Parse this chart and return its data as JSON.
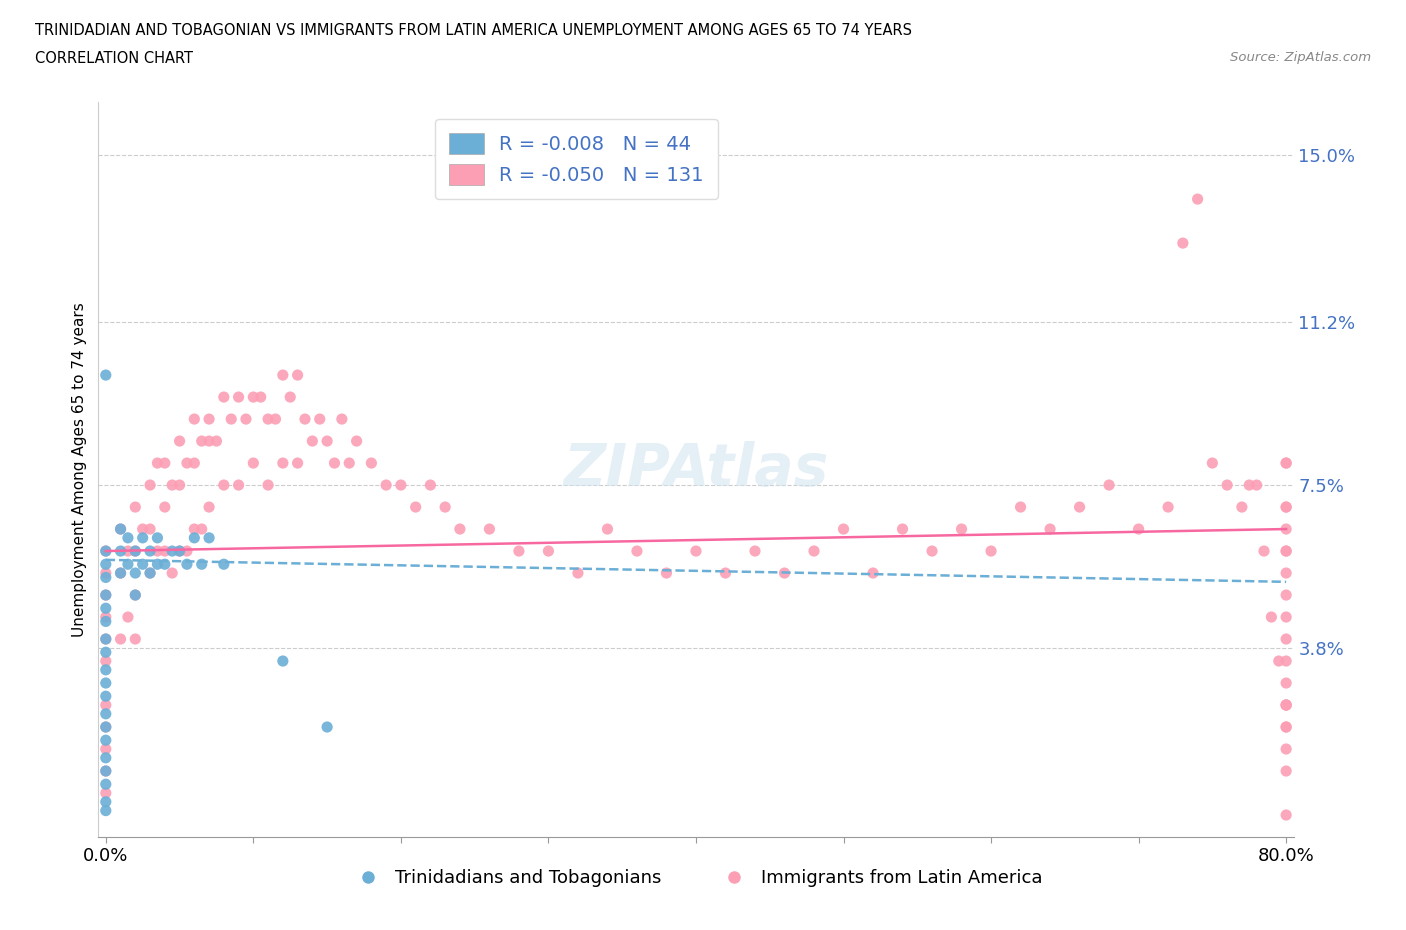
{
  "title_line1": "TRINIDADIAN AND TOBAGONIAN VS IMMIGRANTS FROM LATIN AMERICA UNEMPLOYMENT AMONG AGES 65 TO 74 YEARS",
  "title_line2": "CORRELATION CHART",
  "source_text": "Source: ZipAtlas.com",
  "ylabel": "Unemployment Among Ages 65 to 74 years",
  "xlim": [
    -0.005,
    0.805
  ],
  "ylim": [
    -0.005,
    0.162
  ],
  "ytick_vals": [
    0.0,
    0.038,
    0.075,
    0.112,
    0.15
  ],
  "ytick_labels": [
    "",
    "3.8%",
    "7.5%",
    "11.2%",
    "15.0%"
  ],
  "xtick_vals": [
    0.0,
    0.1,
    0.2,
    0.3,
    0.4,
    0.5,
    0.6,
    0.7,
    0.8
  ],
  "xtick_labels": [
    "0.0%",
    "",
    "",
    "",
    "",
    "",
    "",
    "",
    "80.0%"
  ],
  "blue_color": "#6baed6",
  "pink_color": "#fc9fb5",
  "blue_line_color": "#6baed6",
  "pink_line_color": "#f768a1",
  "R_blue": -0.008,
  "N_blue": 44,
  "R_pink": -0.05,
  "N_pink": 131,
  "legend_label_blue": "Trinidadians and Tobagonians",
  "legend_label_pink": "Immigrants from Latin America",
  "watermark": "ZIPAtlas",
  "blue_x": [
    0.0,
    0.0,
    0.0,
    0.0,
    0.0,
    0.0,
    0.0,
    0.0,
    0.0,
    0.0,
    0.0,
    0.0,
    0.0,
    0.0,
    0.0,
    0.0,
    0.0,
    0.0,
    0.0,
    0.0,
    0.01,
    0.01,
    0.01,
    0.015,
    0.015,
    0.02,
    0.02,
    0.02,
    0.025,
    0.025,
    0.03,
    0.03,
    0.035,
    0.035,
    0.04,
    0.045,
    0.05,
    0.055,
    0.06,
    0.065,
    0.07,
    0.08,
    0.12,
    0.15
  ],
  "blue_y": [
    0.06,
    0.057,
    0.054,
    0.05,
    0.047,
    0.044,
    0.04,
    0.037,
    0.033,
    0.03,
    0.027,
    0.023,
    0.02,
    0.017,
    0.013,
    0.01,
    0.007,
    0.003,
    0.001,
    0.1,
    0.065,
    0.06,
    0.055,
    0.063,
    0.057,
    0.06,
    0.055,
    0.05,
    0.063,
    0.057,
    0.06,
    0.055,
    0.063,
    0.057,
    0.057,
    0.06,
    0.06,
    0.057,
    0.063,
    0.057,
    0.063,
    0.057,
    0.035,
    0.02
  ],
  "pink_x": [
    0.0,
    0.0,
    0.0,
    0.0,
    0.0,
    0.0,
    0.0,
    0.0,
    0.0,
    0.0,
    0.0,
    0.01,
    0.01,
    0.01,
    0.015,
    0.015,
    0.02,
    0.02,
    0.02,
    0.02,
    0.025,
    0.03,
    0.03,
    0.03,
    0.035,
    0.035,
    0.04,
    0.04,
    0.04,
    0.045,
    0.045,
    0.05,
    0.05,
    0.05,
    0.055,
    0.055,
    0.06,
    0.06,
    0.06,
    0.065,
    0.065,
    0.07,
    0.07,
    0.07,
    0.075,
    0.08,
    0.08,
    0.085,
    0.09,
    0.09,
    0.095,
    0.1,
    0.1,
    0.105,
    0.11,
    0.11,
    0.115,
    0.12,
    0.12,
    0.125,
    0.13,
    0.13,
    0.135,
    0.14,
    0.145,
    0.15,
    0.155,
    0.16,
    0.165,
    0.17,
    0.18,
    0.19,
    0.2,
    0.21,
    0.22,
    0.23,
    0.24,
    0.26,
    0.28,
    0.3,
    0.32,
    0.34,
    0.36,
    0.38,
    0.4,
    0.42,
    0.44,
    0.46,
    0.48,
    0.5,
    0.52,
    0.54,
    0.56,
    0.58,
    0.6,
    0.62,
    0.64,
    0.66,
    0.68,
    0.7,
    0.72,
    0.73,
    0.74,
    0.75,
    0.76,
    0.77,
    0.775,
    0.78,
    0.785,
    0.79,
    0.795,
    0.8,
    0.8,
    0.8,
    0.8,
    0.8,
    0.8,
    0.8,
    0.8,
    0.8,
    0.8,
    0.8,
    0.8,
    0.8,
    0.8,
    0.8,
    0.8,
    0.8,
    0.8,
    0.8,
    0.8,
    0.8
  ],
  "pink_y": [
    0.06,
    0.055,
    0.05,
    0.045,
    0.04,
    0.035,
    0.025,
    0.02,
    0.015,
    0.01,
    0.005,
    0.065,
    0.055,
    0.04,
    0.06,
    0.045,
    0.07,
    0.06,
    0.05,
    0.04,
    0.065,
    0.075,
    0.065,
    0.055,
    0.08,
    0.06,
    0.08,
    0.07,
    0.06,
    0.075,
    0.055,
    0.085,
    0.075,
    0.06,
    0.08,
    0.06,
    0.09,
    0.08,
    0.065,
    0.085,
    0.065,
    0.09,
    0.085,
    0.07,
    0.085,
    0.095,
    0.075,
    0.09,
    0.095,
    0.075,
    0.09,
    0.095,
    0.08,
    0.095,
    0.09,
    0.075,
    0.09,
    0.1,
    0.08,
    0.095,
    0.1,
    0.08,
    0.09,
    0.085,
    0.09,
    0.085,
    0.08,
    0.09,
    0.08,
    0.085,
    0.08,
    0.075,
    0.075,
    0.07,
    0.075,
    0.07,
    0.065,
    0.065,
    0.06,
    0.06,
    0.055,
    0.065,
    0.06,
    0.055,
    0.06,
    0.055,
    0.06,
    0.055,
    0.06,
    0.065,
    0.055,
    0.065,
    0.06,
    0.065,
    0.06,
    0.07,
    0.065,
    0.07,
    0.075,
    0.065,
    0.07,
    0.13,
    0.14,
    0.08,
    0.075,
    0.07,
    0.075,
    0.075,
    0.06,
    0.045,
    0.035,
    0.02,
    0.025,
    0.08,
    0.07,
    0.055,
    0.045,
    0.035,
    0.025,
    0.015,
    0.065,
    0.06,
    0.05,
    0.04,
    0.03,
    0.02,
    0.01,
    0.0,
    0.025,
    0.06,
    0.07,
    0.08
  ]
}
